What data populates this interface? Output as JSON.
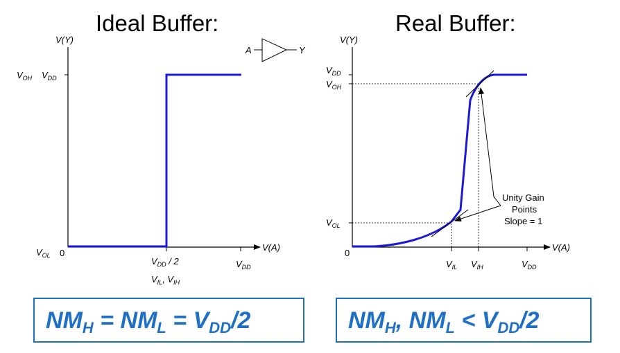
{
  "ideal": {
    "title": "Ideal Buffer:",
    "y_axis": "V(Y)",
    "x_axis": "V(A)",
    "voh": "V",
    "voh_sub": "OH",
    "vdd_y": "V",
    "vdd_y_sub": "DD",
    "vol": "V",
    "vol_sub": "OL",
    "zero": "0",
    "vdd2_a": "V",
    "vdd2_sub": "DD",
    "vdd2_b": " / 2",
    "vil": "V",
    "vil_sub": "IL",
    "sep": ", ",
    "vih": "V",
    "vih_sub": "IH",
    "vdd_x": "V",
    "vdd_x_sub": "DD",
    "symbol_in": "A",
    "symbol_out": "Y",
    "formula": {
      "p1": "NM",
      "s1": "H",
      "p2": " = NM",
      "s2": "L",
      "p3": " = V",
      "s3": "DD",
      "p4": "/2"
    }
  },
  "real": {
    "title": "Real Buffer:",
    "y_axis": "V(Y)",
    "x_axis": "V(A)",
    "vdd_y": "V",
    "vdd_y_sub": "DD",
    "voh": "V",
    "voh_sub": "OH",
    "vol": "V",
    "vol_sub": "OL",
    "zero": "0",
    "vil": "V",
    "vil_sub": "IL",
    "vih": "V",
    "vih_sub": "IH",
    "vdd_x": "V",
    "vdd_x_sub": "DD",
    "note": [
      "Unity Gain",
      "Points",
      "Slope = 1"
    ],
    "formula": {
      "p1": "NM",
      "s1": "H",
      "p2": ", NM",
      "s2": "L",
      "p3": " < V",
      "s3": "DD",
      "p4": "/2"
    }
  },
  "colors": {
    "curve": "#1a1ad6",
    "accent": "#1f6fc4"
  }
}
